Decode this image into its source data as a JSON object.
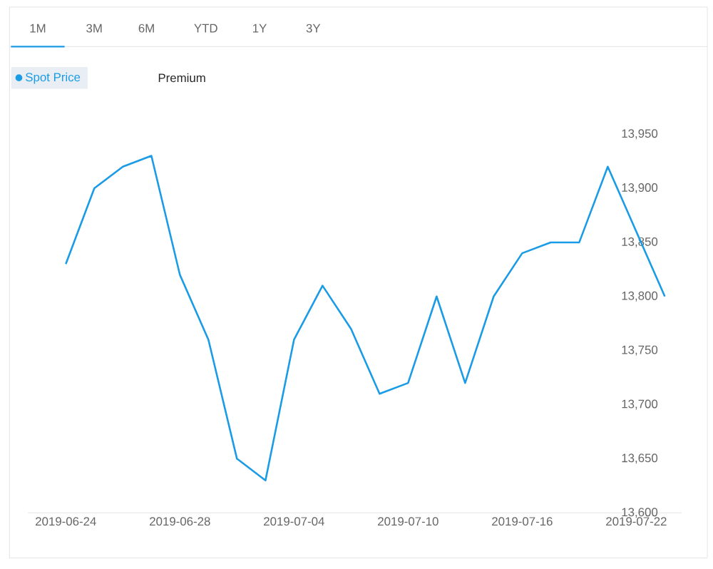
{
  "chart_data": {
    "type": "line",
    "categories": [
      "2019-06-24",
      null,
      null,
      null,
      "2019-06-28",
      null,
      null,
      null,
      "2019-07-04",
      null,
      null,
      null,
      "2019-07-10",
      null,
      null,
      null,
      "2019-07-16",
      null,
      null,
      null,
      "2019-07-22",
      null
    ],
    "series": [
      {
        "name": "Spot Price",
        "color": "#1a9be6",
        "values": [
          13830,
          13900,
          13920,
          13930,
          13820,
          13760,
          13650,
          13630,
          13760,
          13810,
          13770,
          13710,
          13720,
          13800,
          13720,
          13800,
          13840,
          13850,
          13850,
          13920,
          13860,
          13800
        ]
      }
    ],
    "ylim": [
      13600,
      13950
    ],
    "yticks": [
      {
        "value": 13600,
        "label": "13,600"
      },
      {
        "value": 13650,
        "label": "13,650"
      },
      {
        "value": 13700,
        "label": "13,700"
      },
      {
        "value": 13750,
        "label": "13,750"
      },
      {
        "value": 13800,
        "label": "13,800"
      },
      {
        "value": 13850,
        "label": "13,850"
      },
      {
        "value": 13900,
        "label": "13,900"
      },
      {
        "value": 13950,
        "label": "13,950"
      }
    ],
    "legend": "top left",
    "grid": false,
    "marker": "none",
    "line_style": "solid",
    "annotations": [
      "1M",
      "3M",
      "6M",
      "YTD",
      "1Y",
      "3Y",
      "Premium"
    ]
  }
}
